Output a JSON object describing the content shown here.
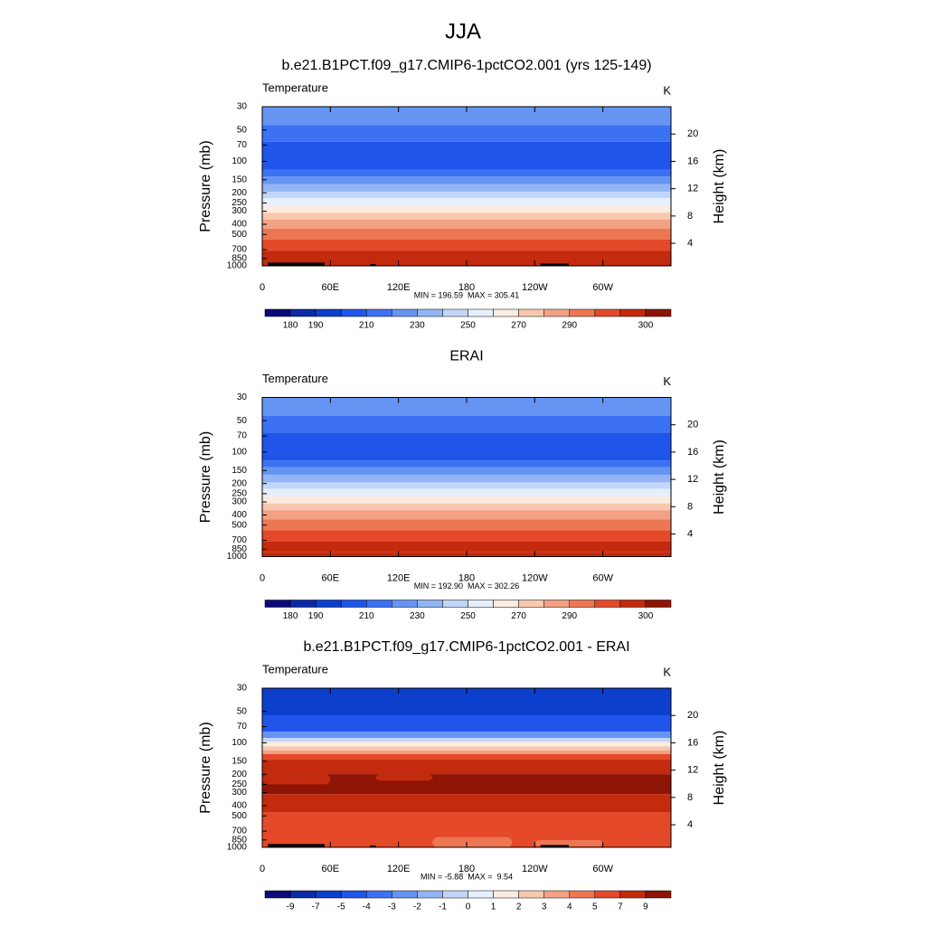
{
  "figure_title": "JJA",
  "chart_data": [
    {
      "type": "contour",
      "title": "b.e21.B1PCT.f09_g17.CMIP6-1pctCO2.001 (yrs 125-149)",
      "left_string": "Temperature",
      "right_string": "K",
      "ylabel": "Pressure (mb)",
      "y2label": "Height (km)",
      "ylim": [
        1000,
        30
      ],
      "ylog": true,
      "yticks": [
        30,
        50,
        70,
        100,
        150,
        200,
        250,
        300,
        400,
        500,
        700,
        850,
        1000
      ],
      "y2lim": [
        0.7,
        24
      ],
      "y2ticks": [
        4,
        8,
        12,
        16,
        20
      ],
      "xlim": [
        0,
        360
      ],
      "xticks": [
        0,
        {
          "value": 60,
          "label": "60E"
        },
        {
          "value": 120,
          "label": "120E"
        },
        180,
        {
          "value": 240,
          "label": "120W"
        },
        {
          "value": 300,
          "label": "60W"
        }
      ],
      "stats": "MIN = 196.59  MAX = 305.41",
      "colorbar": {
        "colors": [
          "#0a0a78",
          "#0b2aa6",
          "#0c3fcc",
          "#1f55ea",
          "#3d71f4",
          "#6694f3",
          "#93b5f5",
          "#c2d6f9",
          "#e6effc",
          "#fcebdf",
          "#f8c8ae",
          "#f3a184",
          "#ed7653",
          "#e4492a",
          "#c42a0d",
          "#8e1405"
        ],
        "ticks": [
          180,
          190,
          null,
          210,
          null,
          230,
          null,
          250,
          null,
          270,
          null,
          290,
          null,
          null,
          300
        ]
      }
    },
    {
      "type": "contour",
      "title": "ERAI",
      "left_string": "Temperature",
      "right_string": "K",
      "ylabel": "Pressure (mb)",
      "y2label": "Height (km)",
      "ylim": [
        1000,
        30
      ],
      "ylog": true,
      "yticks": [
        30,
        50,
        70,
        100,
        150,
        200,
        250,
        300,
        400,
        500,
        700,
        850,
        1000
      ],
      "y2lim": [
        0.7,
        24
      ],
      "y2ticks": [
        4,
        8,
        12,
        16,
        20
      ],
      "xlim": [
        0,
        360
      ],
      "xticks": [
        0,
        {
          "value": 60,
          "label": "60E"
        },
        {
          "value": 120,
          "label": "120E"
        },
        180,
        {
          "value": 240,
          "label": "120W"
        },
        {
          "value": 300,
          "label": "60W"
        }
      ],
      "stats": "MIN = 192.90  MAX = 302.26",
      "colorbar": {
        "colors": [
          "#0a0a78",
          "#0b2aa6",
          "#0c3fcc",
          "#1f55ea",
          "#3d71f4",
          "#6694f3",
          "#93b5f5",
          "#c2d6f9",
          "#e6effc",
          "#fcebdf",
          "#f8c8ae",
          "#f3a184",
          "#ed7653",
          "#e4492a",
          "#c42a0d",
          "#8e1405"
        ],
        "ticks": [
          180,
          190,
          null,
          210,
          null,
          230,
          null,
          250,
          null,
          270,
          null,
          290,
          null,
          null,
          300
        ]
      }
    },
    {
      "type": "contour",
      "title": "b.e21.B1PCT.f09_g17.CMIP6-1pctCO2.001 - ERAI",
      "left_string": "Temperature",
      "right_string": "K",
      "ylabel": "Pressure (mb)",
      "y2label": "Height (km)",
      "ylim": [
        1000,
        30
      ],
      "ylog": true,
      "yticks": [
        30,
        50,
        70,
        100,
        150,
        200,
        250,
        300,
        400,
        500,
        700,
        850,
        1000
      ],
      "y2lim": [
        0.7,
        24
      ],
      "y2ticks": [
        4,
        8,
        12,
        16,
        20
      ],
      "xlim": [
        0,
        360
      ],
      "xticks": [
        0,
        {
          "value": 60,
          "label": "60E"
        },
        {
          "value": 120,
          "label": "120E"
        },
        180,
        {
          "value": 240,
          "label": "120W"
        },
        {
          "value": 300,
          "label": "60W"
        }
      ],
      "stats": "MIN = -5.88  MAX =  9.54",
      "colorbar": {
        "colors": [
          "#0a0a78",
          "#0b2aa6",
          "#0c3fcc",
          "#1f55ea",
          "#3d71f4",
          "#6694f3",
          "#93b5f5",
          "#c2d6f9",
          "#e6effc",
          "#fcebdf",
          "#f8c8ae",
          "#f3a184",
          "#ed7653",
          "#e4492a",
          "#c42a0d",
          "#8e1405"
        ],
        "ticks": [
          -9,
          -7,
          -5,
          -4,
          -3,
          -2,
          -1,
          0,
          1,
          2,
          3,
          4,
          5,
          7,
          9
        ]
      }
    }
  ]
}
